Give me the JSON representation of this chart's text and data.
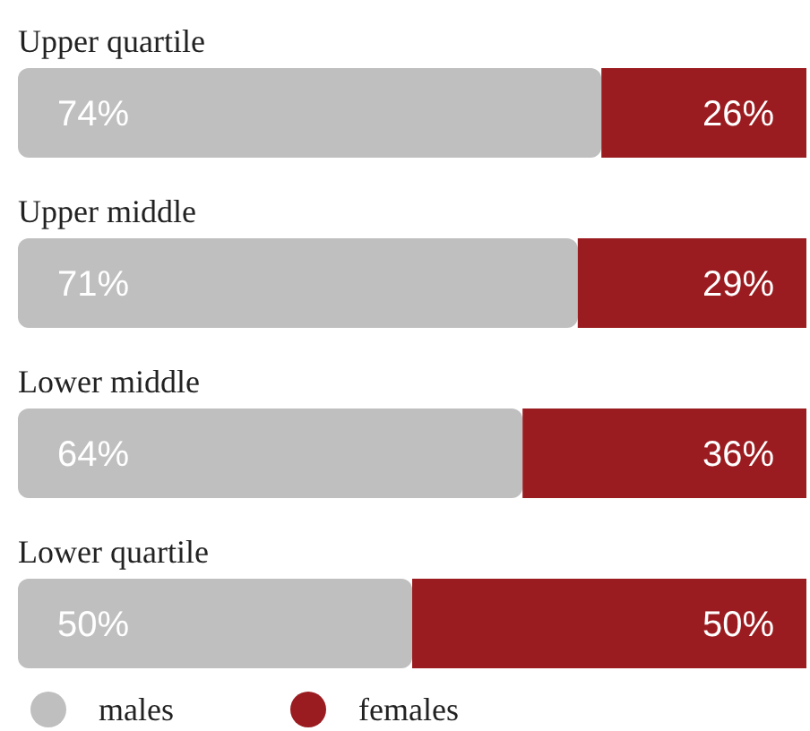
{
  "chart_data": {
    "type": "bar",
    "orientation": "horizontal",
    "stacked": true,
    "legend": "bottom",
    "categories": [
      "Upper quartile",
      "Upper middle",
      "Lower middle",
      "Lower quartile"
    ],
    "series": [
      {
        "name": "males",
        "color": "#bfbfbf",
        "values": [
          74,
          71,
          64,
          50
        ],
        "value_labels": [
          "74%",
          "71%",
          "64%",
          "50%"
        ]
      },
      {
        "name": "females",
        "color": "#9b1c20",
        "values": [
          26,
          29,
          36,
          50
        ],
        "value_labels": [
          "26%",
          "29%",
          "36%",
          "50%"
        ]
      }
    ]
  }
}
